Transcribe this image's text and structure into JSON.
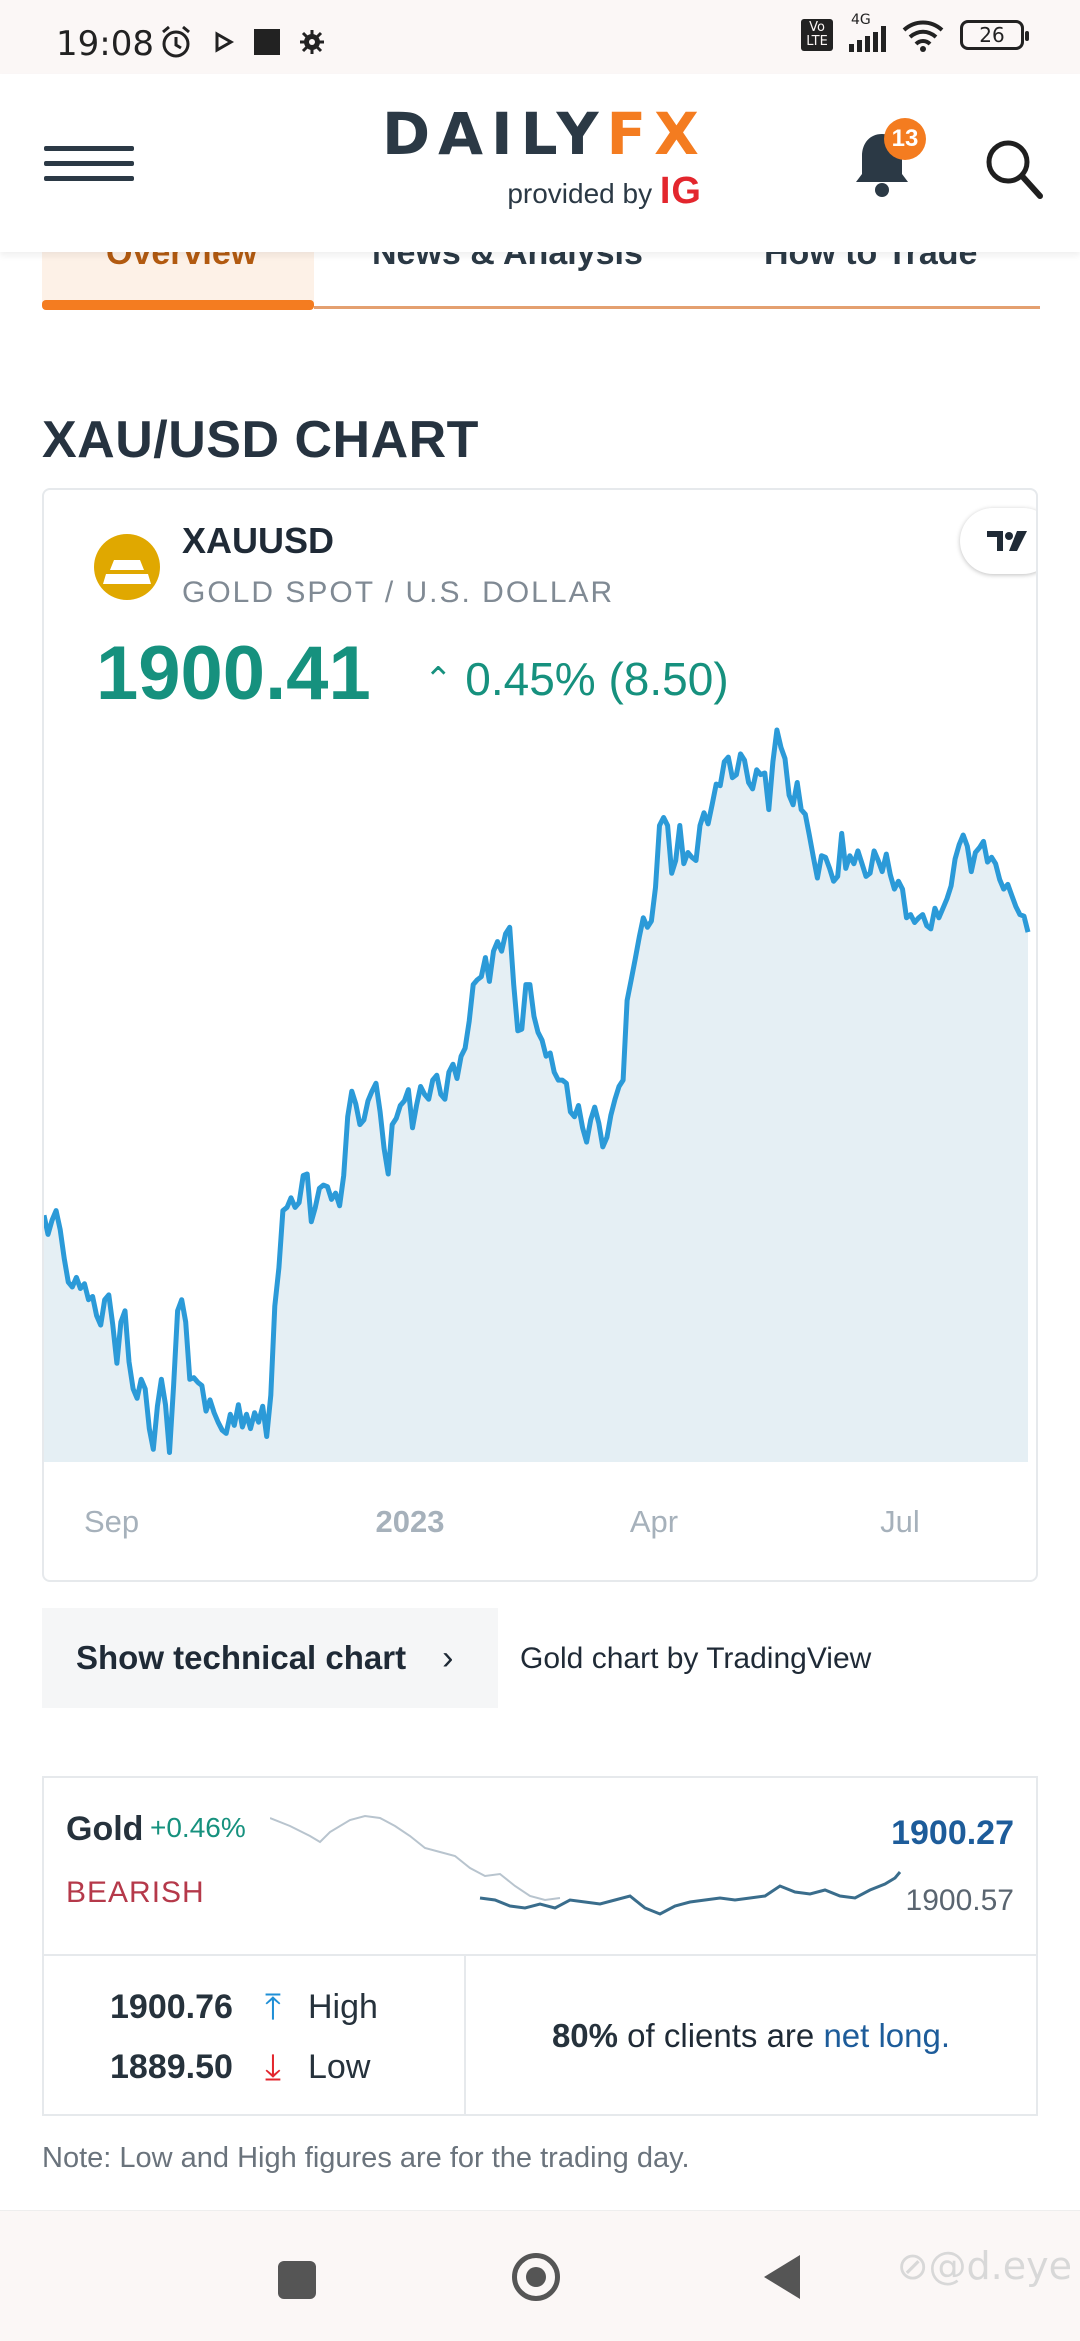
{
  "status_bar": {
    "time": "19:08",
    "network_label": "4G",
    "volte_label": "Vo LTE",
    "battery": "26"
  },
  "header": {
    "logo_daily": "DAILY",
    "logo_fx": "FX",
    "logo_provided": "provided by",
    "logo_ig": "IG",
    "notification_count": "13"
  },
  "tabs": [
    {
      "label": "Overview"
    },
    {
      "label": "News & Analysis"
    },
    {
      "label": "How to Trade"
    }
  ],
  "section_title": "XAU/USD CHART",
  "instrument": {
    "symbol": "XAUUSD",
    "description": "GOLD SPOT / U.S. DOLLAR",
    "price": "1900.41",
    "change": "0.45% (8.50)",
    "up_icon": "chevron-up-icon",
    "colors": {
      "price": "#16917e",
      "line": "#2b9ad8",
      "fill": "#e5eff4"
    }
  },
  "chart_data": {
    "type": "area",
    "x_ticks": [
      "Sep",
      "2023",
      "Apr",
      "Jul"
    ],
    "series": [
      {
        "values": [
          1915,
          1903,
          1912,
          1918,
          1906,
          1888,
          1873,
          1870,
          1876,
          1869,
          1872,
          1862,
          1864,
          1852,
          1846,
          1862,
          1865,
          1846,
          1822,
          1848,
          1855,
          1823,
          1806,
          1800,
          1812,
          1806,
          1781,
          1768,
          1795,
          1812,
          1796,
          1766,
          1808,
          1855,
          1862,
          1848,
          1812,
          1813,
          1810,
          1808,
          1792,
          1799,
          1791,
          1785,
          1780,
          1778,
          1790,
          1783,
          1796,
          1782,
          1790,
          1781,
          1791,
          1785,
          1795,
          1776,
          1802,
          1858,
          1882,
          1918,
          1920,
          1926,
          1920,
          1923,
          1940,
          1941,
          1911,
          1920,
          1932,
          1934,
          1933,
          1925,
          1929,
          1921,
          1940,
          1977,
          1993,
          1985,
          1972,
          1975,
          1987,
          1993,
          1998,
          1980,
          1957,
          1941,
          1972,
          1976,
          1984,
          1987,
          1994,
          1970,
          1984,
          1996,
          1991,
          1988,
          2000,
          2003,
          1991,
          1988,
          2005,
          2010,
          2001,
          2015,
          2020,
          2037,
          2060,
          2063,
          2065,
          2077,
          2062,
          2081,
          2087,
          2081,
          2092,
          2096,
          2060,
          2031,
          2032,
          2060,
          2060,
          2040,
          2030,
          2025,
          2015,
          2017,
          2005,
          2000,
          2000,
          1998,
          1980,
          1977,
          1984,
          1970,
          1961,
          1975,
          1983,
          1973,
          1958,
          1964,
          1978,
          1988,
          1996,
          2000,
          2050,
          2063,
          2076,
          2090,
          2102,
          2096,
          2100,
          2121,
          2160,
          2165,
          2160,
          2130,
          2138,
          2160,
          2136,
          2143,
          2140,
          2138,
          2160,
          2168,
          2161,
          2173,
          2186,
          2185,
          2200,
          2203,
          2190,
          2192,
          2205,
          2201,
          2187,
          2183,
          2195,
          2192,
          2193,
          2170,
          2200,
          2220,
          2209,
          2202,
          2179,
          2173,
          2187,
          2170,
          2167,
          2154,
          2140,
          2127,
          2141,
          2140,
          2133,
          2125,
          2128,
          2155,
          2133,
          2141,
          2136,
          2144,
          2136,
          2128,
          2130,
          2144,
          2138,
          2131,
          2142,
          2129,
          2120,
          2125,
          2120,
          2102,
          2104,
          2099,
          2102,
          2104,
          2097,
          2095,
          2108,
          2102,
          2108,
          2114,
          2122,
          2139,
          2148,
          2154,
          2147,
          2131,
          2143,
          2146,
          2150,
          2137,
          2140,
          2136,
          2126,
          2120,
          2123,
          2116,
          2109,
          2104,
          2103,
          2093
        ]
      }
    ]
  },
  "buttons": {
    "tech_chart": "Show technical chart",
    "tech_chart_chevron": "›",
    "credit": "Gold chart by TradingView"
  },
  "summary": {
    "name": "Gold",
    "change_pct": "+0.46%",
    "sentiment": "BEARISH",
    "last": "1900.27",
    "prev": "1900.57",
    "high_value": "1900.76",
    "high_label": "High",
    "low_value": "1889.50",
    "low_label": "Low",
    "clients_pct": "80%",
    "clients_text": " of clients are ",
    "clients_bias": "net long."
  },
  "note": "Note: Low and High figures are for the trading day.",
  "watermark": "⊘@d.eye"
}
